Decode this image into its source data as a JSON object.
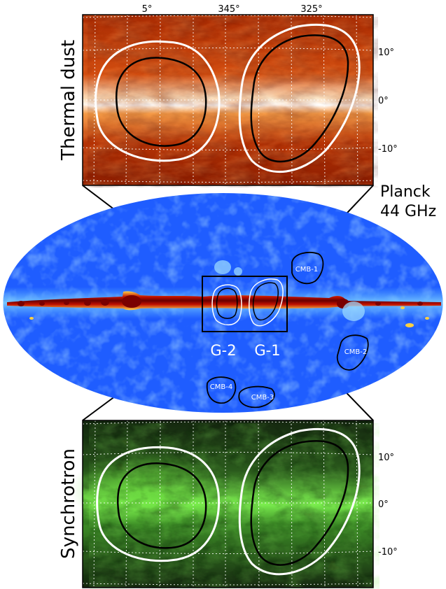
{
  "top_panel": {
    "side_label": "Thermal dust",
    "longitude_ticks": [
      "5°",
      "345°",
      "325°"
    ],
    "latitude_ticks": [
      "10°",
      "0°",
      "-10°"
    ]
  },
  "middle_panel": {
    "map_label_line1": "Planck",
    "map_label_line2": "44 GHz",
    "region_labels": [
      "G-2",
      "G-1"
    ],
    "cmb_labels": [
      "CMB-1",
      "CMB-2",
      "CMB-3",
      "CMB-4"
    ]
  },
  "bottom_panel": {
    "side_label": "Synchrotron",
    "latitude_ticks": [
      "10°",
      "0°",
      "-10°"
    ]
  },
  "colors": {
    "dust_dark": "#7a1500",
    "dust_mid": "#c83a05",
    "dust_bright": "#f07a2a",
    "planck_bg": "#1e5cff",
    "planck_light": "#4ea0ff",
    "plane_dark": "#6b0000",
    "sync_dark": "#0c1a0a",
    "sync_bright": "#55e030"
  }
}
